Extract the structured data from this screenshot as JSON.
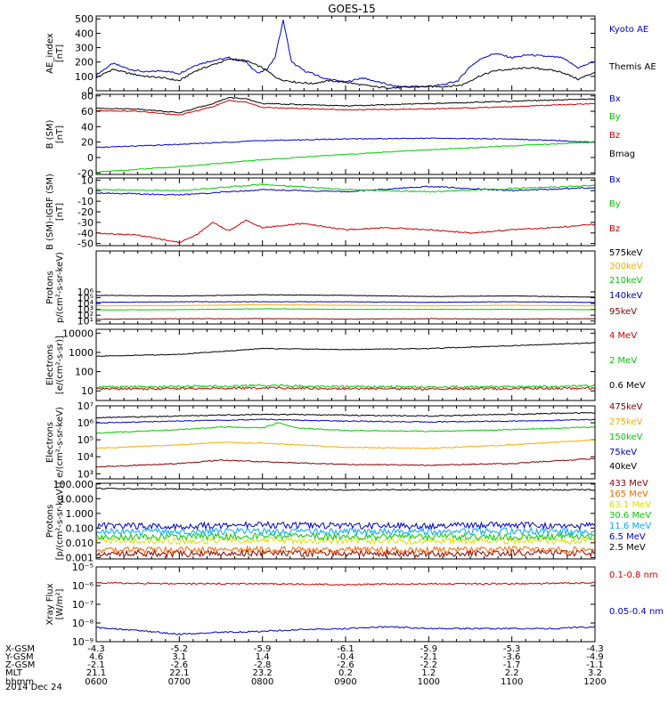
{
  "title": "GOES-15",
  "time": {
    "start_hhmm": "0600",
    "end_hhmm": "1200",
    "tick_labels": [
      "0600",
      "0700",
      "0800",
      "0900",
      "1000",
      "1100",
      "1200"
    ]
  },
  "ephemeris": {
    "rows": [
      {
        "label": "X-GSM",
        "values": [
          "-4.3",
          "-5.2",
          "-5.9",
          "-6.1",
          "-5.9",
          "-5.3",
          "-4.3"
        ]
      },
      {
        "label": "Y-GSM",
        "values": [
          "4.6",
          "3.1",
          "1.4",
          "-0.4",
          "-2.1",
          "-3.6",
          "-4.9"
        ]
      },
      {
        "label": "Z-GSM",
        "values": [
          "-2.1",
          "-2.6",
          "-2.8",
          "-2.6",
          "-2.2",
          "-1.7",
          "-1.1"
        ]
      },
      {
        "label": "MLT",
        "values": [
          "21.1",
          "22.1",
          "23.2",
          "0.2",
          "1.2",
          "2.2",
          "3.2"
        ]
      },
      {
        "label": "hhmm",
        "values": [
          "0600",
          "0700",
          "0800",
          "0900",
          "1000",
          "1100",
          "1200"
        ]
      }
    ],
    "date": "2014 Dec 24"
  },
  "chart_data": [
    {
      "type": "line",
      "ylabel": "AE_index\n[nT]",
      "scale": "linear",
      "ylim": [
        0,
        520
      ],
      "yticks": [
        {
          "v": 0,
          "t": "0"
        },
        {
          "v": 100,
          "t": "100"
        },
        {
          "v": 200,
          "t": "200"
        },
        {
          "v": 300,
          "t": "300"
        },
        {
          "v": 400,
          "t": "400"
        },
        {
          "v": 500,
          "t": "500"
        }
      ],
      "series": [
        {
          "name": "Kyoto AE",
          "color": "#0000cc",
          "x": [
            0,
            0.2,
            0.4,
            0.6,
            0.8,
            1.0,
            1.2,
            1.4,
            1.6,
            1.8,
            1.95,
            2.05,
            2.15,
            2.25,
            2.35,
            2.5,
            2.6,
            2.75,
            3.0,
            3.2,
            3.4,
            3.6,
            3.8,
            4.0,
            4.2,
            4.35,
            4.5,
            4.65,
            4.8,
            5.0,
            5.2,
            5.4,
            5.6,
            5.8,
            6.0
          ],
          "y": [
            110,
            190,
            150,
            130,
            140,
            120,
            180,
            210,
            230,
            200,
            120,
            150,
            230,
            490,
            200,
            140,
            120,
            85,
            60,
            90,
            60,
            30,
            30,
            30,
            45,
            70,
            170,
            230,
            260,
            230,
            250,
            240,
            230,
            160,
            205
          ]
        },
        {
          "name": "Themis AE",
          "color": "#000000",
          "x": [
            0,
            0.2,
            0.4,
            0.6,
            0.8,
            1.0,
            1.2,
            1.4,
            1.6,
            1.8,
            2.0,
            2.2,
            2.4,
            2.6,
            2.8,
            3.0,
            3.2,
            3.4,
            3.6,
            3.8,
            4.0,
            4.2,
            4.4,
            4.6,
            4.8,
            5.0,
            5.2,
            5.4,
            5.6,
            5.8,
            6.0
          ],
          "y": [
            90,
            150,
            120,
            100,
            90,
            70,
            140,
            180,
            220,
            210,
            160,
            80,
            60,
            50,
            70,
            60,
            40,
            25,
            20,
            25,
            30,
            30,
            40,
            100,
            140,
            150,
            160,
            150,
            130,
            80,
            130
          ]
        }
      ]
    },
    {
      "type": "line",
      "ylabel": "B (SM)\n[nT]",
      "scale": "linear",
      "ylim": [
        -22,
        82
      ],
      "yticks": [
        {
          "v": -20,
          "t": "-20"
        },
        {
          "v": 0,
          "t": "0"
        },
        {
          "v": 20,
          "t": "20"
        },
        {
          "v": 40,
          "t": "40"
        },
        {
          "v": 60,
          "t": "60"
        },
        {
          "v": 80,
          "t": "80"
        }
      ],
      "series": [
        {
          "name": "Bx",
          "color": "#0000cc",
          "x": [
            0,
            1,
            2,
            3,
            4,
            5,
            6
          ],
          "y": [
            13,
            17,
            22,
            24,
            25,
            24,
            20
          ]
        },
        {
          "name": "By",
          "color": "#00cc00",
          "x": [
            0,
            1,
            2,
            3,
            4,
            5,
            6
          ],
          "y": [
            -19,
            -12,
            -3,
            4,
            10,
            15,
            20
          ]
        },
        {
          "name": "Bz",
          "color": "#cc0000",
          "x": [
            0,
            0.5,
            1.0,
            1.4,
            1.6,
            1.8,
            2.0,
            3,
            4,
            5,
            6
          ],
          "y": [
            61,
            60,
            55,
            66,
            74,
            72,
            65,
            62,
            63,
            66,
            70
          ]
        },
        {
          "name": "Bmag",
          "color": "#000000",
          "x": [
            0,
            0.5,
            1.0,
            1.4,
            1.6,
            1.8,
            2.0,
            3,
            4,
            5,
            6
          ],
          "y": [
            64,
            63,
            58,
            70,
            78,
            76,
            70,
            67,
            70,
            73,
            76
          ]
        }
      ]
    },
    {
      "type": "line",
      "ylabel": "B (SM)-IGRF (SM)\n[nT]",
      "scale": "linear",
      "ylim": [
        -52,
        12
      ],
      "yticks": [
        {
          "v": -50,
          "t": "-50"
        },
        {
          "v": -40,
          "t": "-40"
        },
        {
          "v": -30,
          "t": "-30"
        },
        {
          "v": -20,
          "t": "-20"
        },
        {
          "v": -10,
          "t": "-10"
        },
        {
          "v": 0,
          "t": "0"
        },
        {
          "v": 10,
          "t": "10"
        }
      ],
      "series": [
        {
          "name": "Bx",
          "color": "#0000cc",
          "x": [
            0,
            1,
            2,
            3,
            4,
            5,
            6
          ],
          "y": [
            -2,
            -4,
            1,
            -1,
            4,
            0,
            3
          ]
        },
        {
          "name": "By",
          "color": "#00cc00",
          "x": [
            0,
            1,
            2,
            3,
            4,
            5,
            6
          ],
          "y": [
            1,
            0,
            6,
            1,
            -1,
            2,
            5
          ]
        },
        {
          "name": "Bz",
          "color": "#cc0000",
          "x": [
            0,
            0.5,
            1.0,
            1.2,
            1.4,
            1.6,
            1.8,
            2.0,
            2.5,
            3.0,
            3.5,
            4.0,
            4.5,
            5.0,
            5.5,
            6.0
          ],
          "y": [
            -40,
            -42,
            -49,
            -42,
            -30,
            -38,
            -28,
            -35,
            -31,
            -37,
            -35,
            -37,
            -40,
            -37,
            -35,
            -32
          ]
        }
      ]
    },
    {
      "type": "line",
      "ylabel": "Protons\np/(cm²-s-sr-keV)",
      "scale": "log",
      "ylim": [
        0.5,
        13
      ],
      "yticks": [
        {
          "v": 1,
          "t": "10¹"
        },
        {
          "v": 2,
          "t": "10²"
        },
        {
          "v": 3,
          "t": "10³"
        },
        {
          "v": 4,
          "t": "10⁴"
        },
        {
          "v": 5,
          "t": "10⁵"
        },
        {
          "v": 6,
          "t": "10⁶"
        }
      ],
      "series": [
        {
          "name": "575keV",
          "color": "#000000",
          "x": [
            0,
            1,
            2,
            3,
            4,
            5,
            6
          ],
          "y": [
            5.4,
            5.3,
            5.5,
            5.4,
            5.2,
            5.3,
            5.1
          ]
        },
        {
          "name": "300keV",
          "color": "#ffaa00",
          "x": [
            0,
            1,
            2,
            3,
            4,
            5,
            6
          ],
          "y": [
            3.6,
            3.65,
            3.8,
            3.7,
            3.6,
            3.7,
            3.6
          ]
        },
        {
          "name": "210keV",
          "color": "#00cc00",
          "x": [
            0,
            1,
            2,
            3,
            4,
            5,
            6
          ],
          "y": [
            2.9,
            2.95,
            3.1,
            3.0,
            3.0,
            3.0,
            2.95
          ]
        },
        {
          "name": "140keV",
          "color": "#0000cc",
          "x": [
            0,
            1,
            2,
            3,
            4,
            5,
            6
          ],
          "y": [
            4.2,
            4.3,
            4.3,
            4.3,
            4.2,
            4.3,
            4.2
          ]
        },
        {
          "name": "95keV",
          "color": "#880000",
          "x": [
            0,
            1,
            2,
            3,
            4,
            5,
            6
          ],
          "y": [
            1.3,
            1.4,
            1.4,
            1.35,
            1.4,
            1.35,
            1.4
          ]
        }
      ]
    },
    {
      "type": "line",
      "ylabel": "Electrons\n[e/(cm²-s-sr)]",
      "scale": "log",
      "ylim": [
        0.5,
        4.2
      ],
      "yticks": [
        {
          "v": 1,
          "t": "10"
        },
        {
          "v": 2,
          "t": "100"
        },
        {
          "v": 3,
          "t": "1000"
        },
        {
          "v": 4,
          "t": "10000"
        }
      ],
      "series": [
        {
          "name": "4 MeV",
          "color": "#cc0000",
          "x": [
            0,
            1,
            2,
            3,
            4,
            5,
            6
          ],
          "y": [
            1.1,
            1.12,
            1.15,
            1.12,
            1.1,
            1.12,
            1.15
          ]
        },
        {
          "name": "2 MeV",
          "color": "#00cc00",
          "x": [
            0,
            1,
            2,
            3,
            4,
            5,
            6
          ],
          "y": [
            1.2,
            1.22,
            1.28,
            1.22,
            1.2,
            1.22,
            1.25
          ]
        },
        {
          "name": "0.6 MeV",
          "color": "#000000",
          "x": [
            0,
            1,
            2,
            3,
            4,
            5,
            6
          ],
          "y": [
            2.8,
            2.9,
            3.2,
            3.15,
            3.2,
            3.35,
            3.5
          ]
        }
      ]
    },
    {
      "type": "line",
      "ylabel": "Electrons\ne/(cm²-s-sr-keV)",
      "scale": "log",
      "ylim": [
        2.7,
        7
      ],
      "yticks": [
        {
          "v": 3,
          "t": "10³"
        },
        {
          "v": 4,
          "t": "10⁴"
        },
        {
          "v": 5,
          "t": "10⁵"
        },
        {
          "v": 6,
          "t": "10⁶"
        },
        {
          "v": 7,
          "t": "10⁷"
        }
      ],
      "series": [
        {
          "name": "475keV",
          "color": "#880000",
          "x": [
            0,
            0.5,
            1,
            1.5,
            2,
            3,
            4,
            5,
            6
          ],
          "y": [
            3.4,
            3.5,
            3.6,
            3.8,
            3.7,
            3.55,
            3.5,
            3.6,
            3.9
          ]
        },
        {
          "name": "275keV",
          "color": "#ffaa00",
          "x": [
            0,
            0.5,
            1,
            1.5,
            2,
            3,
            4,
            5,
            6
          ],
          "y": [
            4.5,
            4.6,
            4.7,
            4.85,
            4.8,
            4.55,
            4.5,
            4.7,
            5.0
          ]
        },
        {
          "name": "150keV",
          "color": "#00cc00",
          "x": [
            0,
            0.5,
            1,
            1.5,
            2,
            2.2,
            2.4,
            3,
            4,
            5,
            6
          ],
          "y": [
            5.4,
            5.5,
            5.6,
            5.75,
            5.7,
            6.0,
            5.7,
            5.55,
            5.5,
            5.6,
            5.75
          ]
        },
        {
          "name": "75keV",
          "color": "#0000cc",
          "x": [
            0,
            1,
            2,
            3,
            4,
            5,
            6
          ],
          "y": [
            6.0,
            6.1,
            6.2,
            6.1,
            6.05,
            6.1,
            6.2
          ]
        },
        {
          "name": "40keV",
          "color": "#000000",
          "x": [
            0,
            1,
            2,
            3,
            4,
            5,
            6
          ],
          "y": [
            6.3,
            6.4,
            6.5,
            6.45,
            6.4,
            6.5,
            6.6
          ]
        }
      ]
    },
    {
      "type": "line",
      "ylabel": "Protons\n[p/(cm²-s-sr-keV)]",
      "scale": "log",
      "ylim": [
        -3.1,
        2.05
      ],
      "yticks": [
        {
          "v": -3,
          "t": "0.001"
        },
        {
          "v": -2,
          "t": "0.010"
        },
        {
          "v": -1,
          "t": "0.100"
        },
        {
          "v": 0,
          "t": "1.000"
        },
        {
          "v": 1,
          "t": "10.000"
        },
        {
          "v": 2,
          "t": "100.000"
        }
      ],
      "series": [
        {
          "name": "433 MeV",
          "color": "#880000",
          "x": [
            0,
            1,
            2,
            3,
            4,
            5,
            6
          ],
          "y": [
            -2.7,
            -2.75,
            -2.7,
            -2.7,
            -2.75,
            -2.7,
            -2.7
          ]
        },
        {
          "name": "165 MeV",
          "color": "#ff6600",
          "x": [
            0,
            1,
            2,
            3,
            4,
            5,
            6
          ],
          "y": [
            -2.5,
            -2.5,
            -2.45,
            -2.5,
            -2.5,
            -2.45,
            -2.5
          ]
        },
        {
          "name": "63.1 MeV",
          "color": "#dddd00",
          "x": [
            0,
            1,
            2,
            3,
            4,
            5,
            6
          ],
          "y": [
            -1.85,
            -1.9,
            -1.85,
            -1.85,
            -1.9,
            -1.85,
            -1.9
          ]
        },
        {
          "name": "30.6 MeV",
          "color": "#00cc00",
          "x": [
            0,
            1,
            2,
            3,
            4,
            5,
            6
          ],
          "y": [
            -1.6,
            -1.6,
            -1.55,
            -1.6,
            -1.6,
            -1.6,
            -1.55
          ]
        },
        {
          "name": "11.6 MeV",
          "color": "#00aaff",
          "x": [
            0,
            1,
            2,
            3,
            4,
            5,
            6
          ],
          "y": [
            -1.25,
            -1.25,
            -1.2,
            -1.25,
            -1.25,
            -1.2,
            -1.25
          ]
        },
        {
          "name": "6.5 MeV",
          "color": "#0000cc",
          "x": [
            0,
            1,
            2,
            3,
            4,
            5,
            6
          ],
          "y": [
            -0.85,
            -0.85,
            -0.8,
            -0.85,
            -0.85,
            -0.8,
            -0.85
          ]
        },
        {
          "name": "2.5 MeV",
          "color": "#000000",
          "x": [
            0,
            1,
            2,
            3,
            4,
            5,
            6
          ],
          "y": [
            1.7,
            1.65,
            1.65,
            1.6,
            1.6,
            1.62,
            1.6
          ]
        }
      ]
    },
    {
      "type": "line",
      "ylabel": "Xray Flux\n[W/m²]",
      "scale": "log",
      "ylim": [
        -9,
        -5
      ],
      "yticks": [
        {
          "v": -9,
          "t": "10⁻⁹"
        },
        {
          "v": -8,
          "t": "10⁻⁸"
        },
        {
          "v": -7,
          "t": "10⁻⁷"
        },
        {
          "v": -6,
          "t": "10⁻⁶"
        },
        {
          "v": -5,
          "t": "10⁻⁵"
        }
      ],
      "series": [
        {
          "name": "0.1-0.8 nm",
          "color": "#cc0000",
          "x": [
            0,
            1,
            2,
            3,
            4,
            5,
            6
          ],
          "y": [
            -5.85,
            -5.9,
            -5.9,
            -5.95,
            -5.9,
            -5.9,
            -5.85
          ]
        },
        {
          "name": "0.05-0.4 nm",
          "color": "#0000cc",
          "x": [
            0,
            0.5,
            1,
            1.5,
            2,
            2.5,
            3,
            3.5,
            4,
            4.5,
            5,
            5.5,
            6
          ],
          "y": [
            -8.25,
            -8.4,
            -8.6,
            -8.5,
            -8.45,
            -8.35,
            -8.3,
            -8.2,
            -8.3,
            -8.3,
            -8.3,
            -8.3,
            -8.2
          ]
        }
      ]
    }
  ]
}
